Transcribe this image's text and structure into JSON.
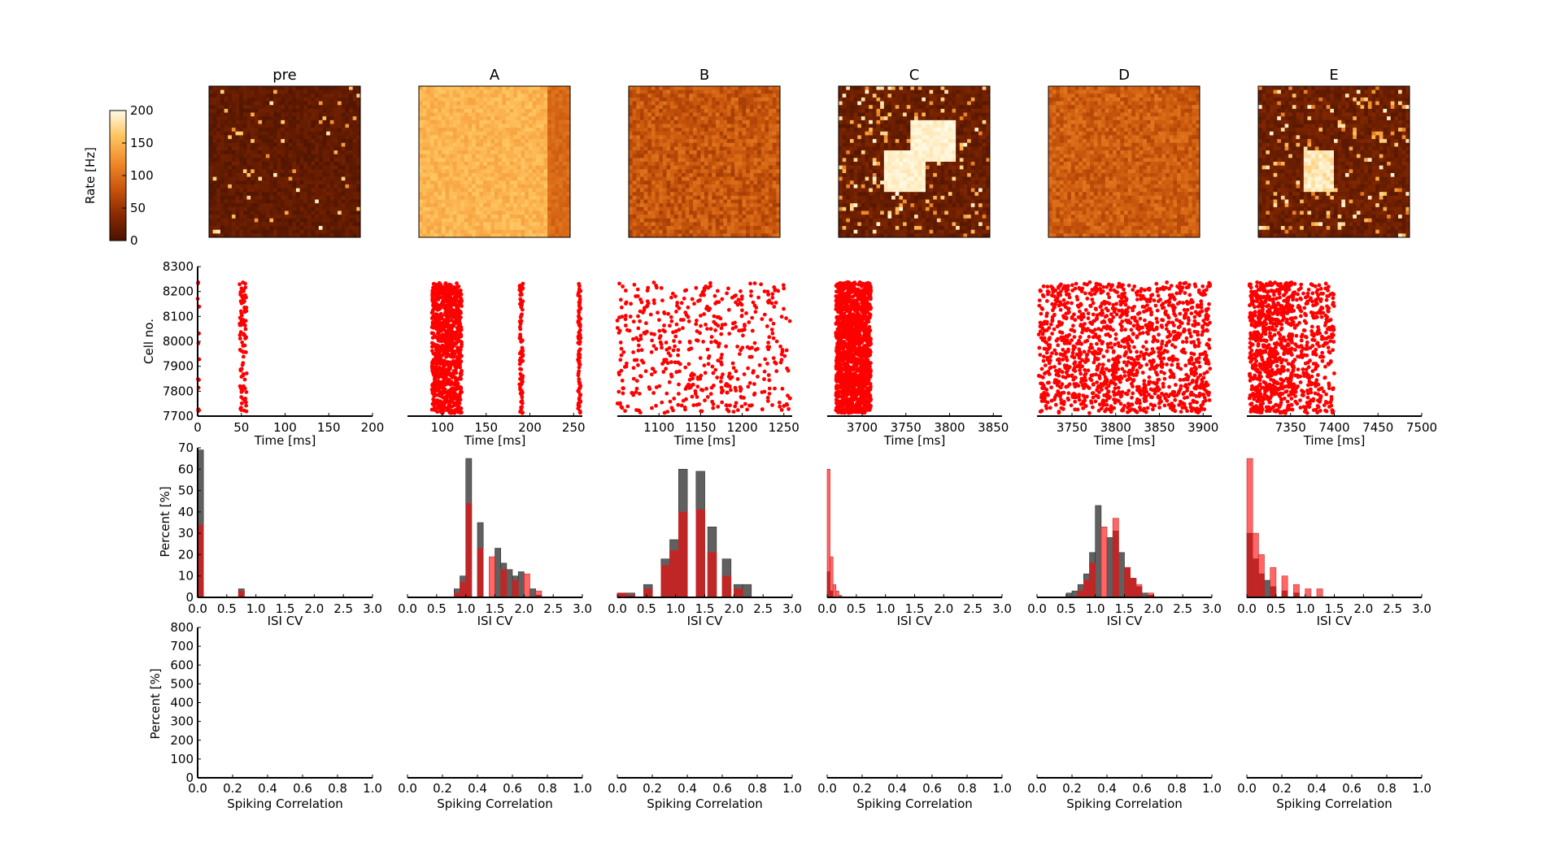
{
  "figure": {
    "colorbar": {
      "label": "Rate [Hz]",
      "ticks": [
        "0",
        "50",
        "100",
        "150",
        "200"
      ],
      "range": [
        0,
        200
      ],
      "colors": [
        "#4a1200",
        "#8a2a00",
        "#c9560c",
        "#f08a2a",
        "#ffc35e",
        "#fffbe6"
      ]
    },
    "panel_titles": [
      "pre",
      "A",
      "B",
      "C",
      "D",
      "E"
    ],
    "raster_ylabel": "Cell no.",
    "raster_yticks": [
      "7700",
      "7800",
      "7900",
      "8000",
      "8100",
      "8200",
      "8300"
    ],
    "raster_xlabel": "Time [ms]",
    "isi_ylabel": "Percent [%]",
    "isi_yticks": [
      "0",
      "10",
      "20",
      "30",
      "40",
      "50",
      "60",
      "70"
    ],
    "isi_xlabel": "ISI CV",
    "isi_xticks": [
      "0.0",
      "0.5",
      "1.0",
      "1.5",
      "2.0",
      "2.5",
      "3.0"
    ],
    "corr_ylabel": "Percent [%]",
    "corr_yticks": [
      "0",
      "100",
      "200",
      "300",
      "400",
      "500",
      "600",
      "700",
      "800"
    ],
    "corr_xlabel": "Spiking Correlation",
    "corr_xticks": [
      "0.0",
      "0.2",
      "0.4",
      "0.6",
      "0.8",
      "1.0"
    ],
    "series_colors": {
      "gray": "#606060",
      "red": "#ff0000",
      "darkred": "#c8282a"
    }
  },
  "chart_data": [
    {
      "type": "heatmap",
      "panels": [
        {
          "title": "pre",
          "mean_rate_hz": 10,
          "patches": []
        },
        {
          "title": "A",
          "mean_rate_hz": 150,
          "right_band_rate_hz": 95
        },
        {
          "title": "B",
          "mean_rate_hz": 80
        },
        {
          "title": "C",
          "mean_rate_hz": 15,
          "patches": [
            "square-top-right",
            "square-bottom-left"
          ],
          "patch_rate_hz": 195
        },
        {
          "title": "D",
          "mean_rate_hz": 85
        },
        {
          "title": "E",
          "mean_rate_hz": 25,
          "patches": [
            "square-center"
          ],
          "patch_rate_hz": 190
        }
      ]
    },
    {
      "type": "scatter",
      "ylabel": "Cell no.",
      "ylim": [
        7700,
        8300
      ],
      "panels": [
        {
          "title": "pre",
          "xlim": [
            0,
            200
          ],
          "xticks": [
            "0",
            "50",
            "100",
            "150",
            "200"
          ],
          "x_tick_values": [
            0,
            50,
            100,
            150,
            200
          ],
          "bursts": [
            [
              0,
              2,
              "sparse"
            ],
            [
              48,
              56,
              "line"
            ]
          ]
        },
        {
          "title": "A",
          "xlim": [
            60,
            260
          ],
          "xticks": [
            "100",
            "150",
            "200",
            "250"
          ],
          "x_tick_values": [
            100,
            150,
            200,
            250
          ],
          "bursts": [
            [
              88,
              122,
              "dense"
            ],
            [
              188,
              192,
              "line"
            ],
            [
              255,
              258,
              "line"
            ]
          ]
        },
        {
          "title": "B",
          "xlim": [
            1050,
            1260
          ],
          "xticks": [
            "1100",
            "1150",
            "1200",
            "1250"
          ],
          "x_tick_values": [
            1100,
            1150,
            1200,
            1250
          ],
          "bursts": [
            [
              1050,
              1258,
              "scattered"
            ]
          ]
        },
        {
          "title": "C",
          "xlim": [
            3660,
            3860
          ],
          "xticks": [
            "3700",
            "3750",
            "3800",
            "3850"
          ],
          "x_tick_values": [
            3700,
            3750,
            3800,
            3850
          ],
          "bursts": [
            [
              3670,
              3710,
              "solid"
            ]
          ]
        },
        {
          "title": "D",
          "xlim": [
            3710,
            3910
          ],
          "xticks": [
            "3750",
            "3800",
            "3850",
            "3900"
          ],
          "x_tick_values": [
            3750,
            3800,
            3850,
            3900
          ],
          "bursts": [
            [
              3712,
              3908,
              "medium"
            ]
          ]
        },
        {
          "title": "E",
          "xlim": [
            7300,
            7500
          ],
          "xticks": [
            "7350",
            "7400",
            "7450",
            "7500"
          ],
          "x_tick_values": [
            7350,
            7400,
            7450,
            7500
          ],
          "bursts": [
            [
              7303,
              7352,
              "dense"
            ],
            [
              7352,
              7400,
              "medium"
            ]
          ]
        }
      ]
    },
    {
      "type": "bar",
      "xlabel": "ISI CV",
      "ylabel": "Percent [%]",
      "xlim": [
        0,
        3
      ],
      "ylim": [
        0,
        70
      ],
      "panels": [
        {
          "title": "pre",
          "bin_width": 0.1,
          "gray": [
            [
              0.0,
              69
            ],
            [
              0.7,
              4
            ]
          ],
          "red": [
            [
              0.0,
              34
            ],
            [
              0.7,
              3
            ]
          ]
        },
        {
          "title": "A",
          "bin_width": 0.1,
          "gray": [
            [
              0.8,
              4
            ],
            [
              0.9,
              10
            ],
            [
              1.0,
              65
            ],
            [
              1.2,
              35
            ],
            [
              1.5,
              23
            ],
            [
              1.6,
              16
            ],
            [
              1.7,
              13
            ],
            [
              1.8,
              10
            ],
            [
              1.9,
              12
            ],
            [
              2.1,
              4
            ],
            [
              2.2,
              1
            ]
          ],
          "red": [
            [
              0.8,
              2
            ],
            [
              0.9,
              7
            ],
            [
              1.0,
              44
            ],
            [
              1.2,
              23
            ],
            [
              1.4,
              19
            ],
            [
              1.6,
              13
            ],
            [
              1.8,
              8
            ],
            [
              2.0,
              11
            ],
            [
              2.2,
              3
            ]
          ]
        },
        {
          "title": "B",
          "bin_width": 0.15,
          "gray": [
            [
              0.0,
              2
            ],
            [
              0.15,
              2
            ],
            [
              0.45,
              6
            ],
            [
              0.75,
              18
            ],
            [
              0.9,
              27
            ],
            [
              1.05,
              60
            ],
            [
              1.35,
              59
            ],
            [
              1.55,
              33
            ],
            [
              1.8,
              18
            ],
            [
              2.0,
              6
            ],
            [
              2.15,
              6
            ]
          ],
          "red": [
            [
              0.0,
              2
            ],
            [
              0.15,
              1
            ],
            [
              0.45,
              4
            ],
            [
              0.75,
              15
            ],
            [
              0.9,
              22
            ],
            [
              1.05,
              40
            ],
            [
              1.35,
              41
            ],
            [
              1.55,
              21
            ],
            [
              1.8,
              10
            ],
            [
              2.0,
              4
            ]
          ]
        },
        {
          "title": "C",
          "bin_width": 0.05,
          "gray": [
            [
              0.0,
              12
            ],
            [
              0.05,
              3
            ]
          ],
          "red": [
            [
              0.0,
              60
            ],
            [
              0.05,
              19
            ],
            [
              0.1,
              6
            ],
            [
              0.15,
              3
            ],
            [
              0.2,
              1
            ]
          ]
        },
        {
          "title": "D",
          "bin_width": 0.1,
          "gray": [
            [
              0.5,
              2
            ],
            [
              0.6,
              3
            ],
            [
              0.7,
              6
            ],
            [
              0.8,
              11
            ],
            [
              0.9,
              21
            ],
            [
              1.0,
              43
            ],
            [
              1.2,
              28
            ],
            [
              1.3,
              31
            ],
            [
              1.4,
              21
            ],
            [
              1.5,
              14
            ],
            [
              1.6,
              9
            ],
            [
              1.7,
              5
            ],
            [
              1.8,
              2
            ],
            [
              1.9,
              1
            ]
          ],
          "red": [
            [
              0.7,
              3
            ],
            [
              0.8,
              8
            ],
            [
              0.9,
              16
            ],
            [
              1.1,
              33
            ],
            [
              1.3,
              37
            ],
            [
              1.5,
              14
            ],
            [
              1.6,
              9
            ],
            [
              1.7,
              6
            ],
            [
              1.9,
              2
            ]
          ]
        },
        {
          "title": "E",
          "bin_width": 0.1,
          "gray": [
            [
              0.0,
              30
            ],
            [
              0.1,
              18
            ],
            [
              0.2,
              11
            ],
            [
              0.3,
              8
            ],
            [
              0.4,
              5
            ],
            [
              0.6,
              3
            ],
            [
              0.8,
              2
            ]
          ],
          "red": [
            [
              0.0,
              65
            ],
            [
              0.1,
              30
            ],
            [
              0.2,
              20
            ],
            [
              0.4,
              14
            ],
            [
              0.6,
              10
            ],
            [
              0.8,
              6
            ],
            [
              1.0,
              4
            ],
            [
              1.2,
              4
            ]
          ]
        }
      ]
    },
    {
      "type": "bar",
      "xlabel": "Spiking Correlation",
      "ylabel": "Percent [%]",
      "xlim": [
        0,
        1
      ],
      "ylim": [
        0,
        800
      ],
      "panels": [
        {
          "title": "pre",
          "values": []
        },
        {
          "title": "A",
          "values": []
        },
        {
          "title": "B",
          "values": []
        },
        {
          "title": "C",
          "values": []
        },
        {
          "title": "D",
          "values": []
        },
        {
          "title": "E",
          "values": []
        }
      ]
    }
  ]
}
